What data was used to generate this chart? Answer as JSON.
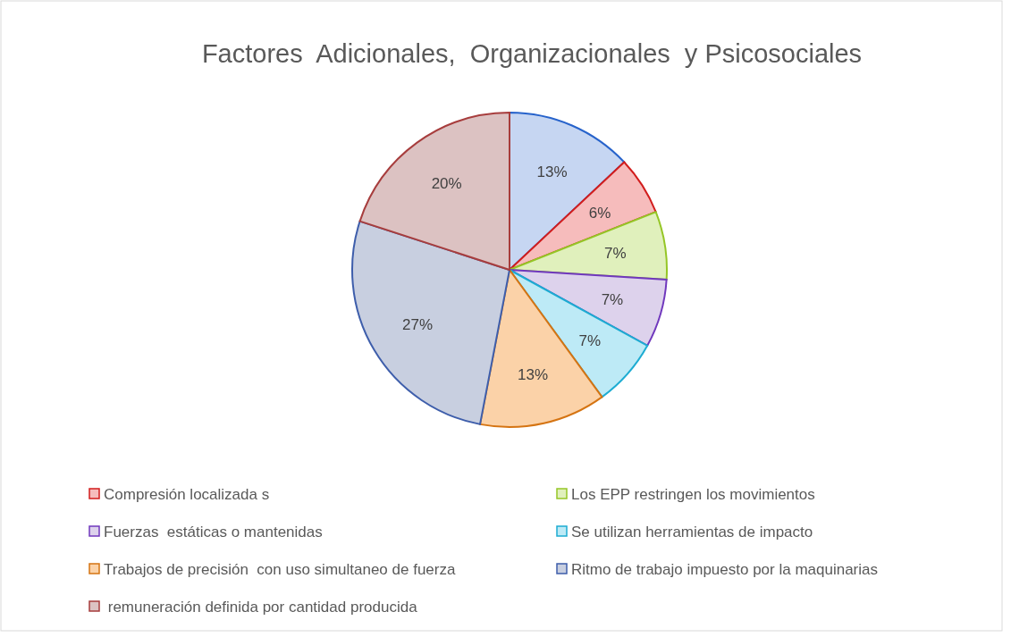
{
  "chart_data": {
    "type": "pie",
    "title": "Factores  Adicionales,  Organizacionales  y Psicosociales",
    "categories": [
      null,
      "Compresión localizada s",
      "Los EPP restringen los movimientos",
      "Fuerzas  estáticas o mantenidas",
      "Se utilizan herramientas de impacto",
      "Trabajos de precisión  con uso simultaneo de fuerza",
      "Ritmo de trabajo impuesto por la maquinarias",
      " remuneración definida por cantidad producida"
    ],
    "values": [
      13,
      6,
      7,
      7,
      7,
      13,
      27,
      20
    ],
    "colors": [
      "#c6d6f2",
      "#f6bcbc",
      "#e0f0bc",
      "#ddd2ec",
      "#bdeaf6",
      "#fbd2a8",
      "#c8cfe0",
      "#dcc2c2"
    ],
    "value_labels": [
      "13%",
      "6%",
      "7%",
      "7%",
      "7%",
      "13%",
      "27%",
      "20%"
    ],
    "legend": "bottom"
  }
}
